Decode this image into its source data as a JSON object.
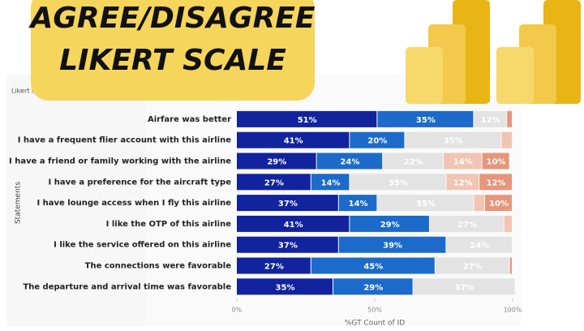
{
  "chart_data": {
    "type": "stacked_bar_horizontal",
    "title": [
      "AGREE/DISAGREE",
      "LIKERT SCALE"
    ],
    "legend_title": "Likert scale",
    "y_label": "Statements",
    "x_label": "%GT Count of ID",
    "categories": [
      "Airfare was better",
      "I have a frequent flier account with this airline",
      "I have a friend or family working with the airline",
      "I have a preference for the aircraft type",
      "I have lounge access when I fly this airline",
      "I like the OTP of this airline",
      "I like the service offered on this airline",
      "The connections were favorable",
      "The departure and arrival time was favorable"
    ],
    "xlim": [
      0,
      100
    ],
    "xticks": [
      {
        "value": 0,
        "label": "0%"
      },
      {
        "value": 50,
        "label": "50%"
      },
      {
        "value": 100,
        "label": "100%"
      }
    ],
    "series": [
      {
        "color": "#12239e",
        "values": [
          51,
          41,
          29,
          27,
          37,
          41,
          37,
          27,
          35
        ],
        "value_labels": [
          "51%",
          "41%",
          "29%",
          "27%",
          "37%",
          "41%",
          "37%",
          "27%",
          "35%"
        ]
      },
      {
        "color": "#1c6ac9",
        "values": [
          35,
          20,
          24,
          14,
          14,
          29,
          39,
          45,
          29
        ],
        "value_labels": [
          "35%",
          "20%",
          "24%",
          "14%",
          "14%",
          "29%",
          "39%",
          "45%",
          "29%"
        ]
      },
      {
        "color": "#e3e3e3",
        "values": [
          12,
          35,
          22,
          35,
          35,
          27,
          24,
          27,
          37
        ],
        "value_labels": [
          "12%",
          "35%",
          "22%",
          "35%",
          "35%",
          "27%",
          "24%",
          "27%",
          "37%"
        ]
      },
      {
        "color": "#f2c4b4",
        "values": [
          0,
          4,
          14,
          12,
          4,
          3,
          0,
          0,
          0
        ],
        "value_labels": [
          null,
          null,
          "14%",
          "12%",
          null,
          null,
          null,
          null,
          null
        ]
      },
      {
        "color": "#e6967c",
        "values": [
          2,
          0,
          10,
          12,
          10,
          0,
          0,
          1,
          0
        ],
        "value_labels": [
          null,
          null,
          "10%",
          "12%",
          "10%",
          null,
          null,
          null,
          null
        ]
      }
    ]
  }
}
